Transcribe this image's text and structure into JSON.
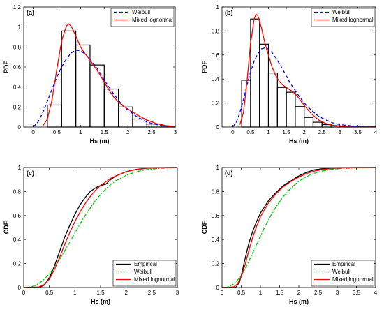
{
  "chart_data": [
    {
      "panel": "(a)",
      "type": "bar",
      "xlabel": "Hs (m)",
      "ylabel": "PDF",
      "xlim": [
        -0.2,
        3
      ],
      "ylim": [
        0,
        1.2
      ],
      "xticks": [
        0,
        0.5,
        1,
        1.5,
        2,
        2.5,
        3
      ],
      "xtick_labels": [
        "0",
        "0.5",
        "1",
        "1.5",
        "2",
        "2.5",
        "3"
      ],
      "yticks": [
        0,
        0.2,
        0.4,
        0.6,
        0.8,
        1,
        1.2
      ],
      "ytick_labels": [
        "0",
        "0.2",
        "0.4",
        "0.6",
        "0.8",
        "1",
        "1.2"
      ],
      "legend_position": "top-right",
      "histogram": {
        "bin_edges": [
          0.3,
          0.6,
          0.9,
          1.2,
          1.5,
          1.8,
          2.1,
          2.4,
          2.7,
          3.0
        ],
        "values": [
          0.22,
          0.96,
          0.82,
          0.62,
          0.38,
          0.2,
          0.08,
          0.03,
          0.01
        ]
      },
      "series": [
        {
          "name": "Weibull",
          "style": "dashed",
          "color": "#0000ff",
          "x": [
            0,
            0.1,
            0.2,
            0.3,
            0.4,
            0.5,
            0.6,
            0.7,
            0.8,
            0.9,
            1.0,
            1.1,
            1.2,
            1.3,
            1.4,
            1.5,
            1.6,
            1.7,
            1.8,
            1.9,
            2.0,
            2.2,
            2.4,
            2.6,
            2.8,
            3.0
          ],
          "y": [
            0,
            0.05,
            0.14,
            0.26,
            0.38,
            0.5,
            0.6,
            0.68,
            0.74,
            0.77,
            0.76,
            0.73,
            0.68,
            0.62,
            0.55,
            0.47,
            0.4,
            0.33,
            0.27,
            0.21,
            0.17,
            0.1,
            0.05,
            0.025,
            0.01,
            0.005
          ]
        },
        {
          "name": "Mixed lognormal",
          "style": "solid",
          "color": "#ff0000",
          "x": [
            0.2,
            0.3,
            0.4,
            0.5,
            0.6,
            0.7,
            0.75,
            0.8,
            0.9,
            1.0,
            1.1,
            1.2,
            1.3,
            1.4,
            1.5,
            1.6,
            1.7,
            1.8,
            1.9,
            2.0,
            2.2,
            2.4,
            2.6,
            2.8,
            3.0
          ],
          "y": [
            0.01,
            0.08,
            0.28,
            0.58,
            0.86,
            1.01,
            1.03,
            1.01,
            0.91,
            0.8,
            0.73,
            0.67,
            0.6,
            0.53,
            0.45,
            0.37,
            0.3,
            0.25,
            0.21,
            0.18,
            0.12,
            0.07,
            0.035,
            0.015,
            0.005
          ]
        }
      ]
    },
    {
      "panel": "(b)",
      "type": "bar",
      "xlabel": "Hs (m)",
      "ylabel": "PDF",
      "xlim": [
        -0.3,
        4
      ],
      "ylim": [
        0,
        1
      ],
      "xticks": [
        0,
        0.5,
        1,
        1.5,
        2,
        2.5,
        3,
        3.5,
        4
      ],
      "xtick_labels": [
        "0",
        "0.5",
        "1",
        "1.5",
        "2",
        "2.5",
        "3",
        "3.5",
        "4"
      ],
      "yticks": [
        0,
        0.2,
        0.4,
        0.6,
        0.8,
        1
      ],
      "ytick_labels": [
        "0",
        "0.2",
        "0.4",
        "0.6",
        "0.8",
        "1"
      ],
      "legend_position": "top-right",
      "histogram": {
        "bin_edges": [
          0.25,
          0.5,
          0.75,
          1.0,
          1.25,
          1.5,
          1.75,
          2.0,
          2.25,
          2.5,
          2.75,
          3.0,
          3.25,
          3.5,
          3.75,
          4.0
        ],
        "values": [
          0.39,
          0.9,
          0.69,
          0.45,
          0.33,
          0.29,
          0.17,
          0.08,
          0.04,
          0.02,
          0.01,
          0.005,
          0.003,
          0.002,
          0.001
        ]
      },
      "series": [
        {
          "name": "Weibull",
          "style": "dashed",
          "color": "#0000ff",
          "x": [
            0,
            0.1,
            0.2,
            0.3,
            0.4,
            0.5,
            0.6,
            0.7,
            0.8,
            0.9,
            1.0,
            1.1,
            1.2,
            1.4,
            1.6,
            1.8,
            2.0,
            2.2,
            2.4,
            2.6,
            2.8,
            3.0,
            3.5,
            4.0
          ],
          "y": [
            0,
            0.04,
            0.12,
            0.23,
            0.35,
            0.46,
            0.55,
            0.61,
            0.65,
            0.66,
            0.65,
            0.62,
            0.58,
            0.48,
            0.37,
            0.28,
            0.2,
            0.14,
            0.09,
            0.06,
            0.035,
            0.02,
            0.005,
            0.001
          ]
        },
        {
          "name": "Mixed lognormal",
          "style": "solid",
          "color": "#ff0000",
          "x": [
            0.2,
            0.3,
            0.4,
            0.5,
            0.6,
            0.65,
            0.7,
            0.8,
            0.9,
            1.0,
            1.1,
            1.2,
            1.3,
            1.4,
            1.5,
            1.6,
            1.7,
            1.8,
            1.9,
            2.0,
            2.2,
            2.4,
            2.6,
            2.8,
            3.0,
            3.5,
            4.0
          ],
          "y": [
            0.02,
            0.12,
            0.38,
            0.7,
            0.9,
            0.94,
            0.93,
            0.83,
            0.7,
            0.6,
            0.5,
            0.43,
            0.38,
            0.35,
            0.33,
            0.31,
            0.29,
            0.26,
            0.22,
            0.18,
            0.11,
            0.06,
            0.03,
            0.015,
            0.008,
            0.002,
            0.0
          ]
        }
      ]
    },
    {
      "panel": "(c)",
      "type": "line",
      "xlabel": "Hs (m)",
      "ylabel": "CDF",
      "xlim": [
        0,
        3
      ],
      "ylim": [
        0,
        1
      ],
      "xticks": [
        0,
        0.5,
        1,
        1.5,
        2,
        2.5,
        3
      ],
      "xtick_labels": [
        "0",
        "0.5",
        "1",
        "1.5",
        "2",
        "2.5",
        "3"
      ],
      "yticks": [
        0,
        0.2,
        0.4,
        0.6,
        0.8,
        1
      ],
      "ytick_labels": [
        "0",
        "0.2",
        "0.4",
        "0.6",
        "0.8",
        "1"
      ],
      "legend_position": "bottom-right",
      "series": [
        {
          "name": "Empirical",
          "style": "solid",
          "color": "#000000",
          "x": [
            0,
            0.3,
            0.4,
            0.5,
            0.6,
            0.7,
            0.8,
            0.9,
            1.0,
            1.1,
            1.2,
            1.3,
            1.4,
            1.5,
            1.6,
            1.7,
            1.8,
            2.0,
            2.2,
            2.4,
            2.6,
            2.8,
            3.0
          ],
          "y": [
            0,
            0.0,
            0.02,
            0.08,
            0.18,
            0.3,
            0.42,
            0.52,
            0.61,
            0.69,
            0.75,
            0.8,
            0.83,
            0.85,
            0.86,
            0.9,
            0.93,
            0.965,
            0.985,
            0.995,
            0.998,
            1.0,
            1.0
          ]
        },
        {
          "name": "Weibull",
          "style": "dashdot",
          "color": "#00cc00",
          "x": [
            0,
            0.1,
            0.2,
            0.3,
            0.4,
            0.5,
            0.6,
            0.7,
            0.8,
            0.9,
            1.0,
            1.1,
            1.2,
            1.3,
            1.4,
            1.5,
            1.6,
            1.7,
            1.8,
            2.0,
            2.2,
            2.4,
            2.6,
            2.8,
            3.0
          ],
          "y": [
            0,
            0.003,
            0.012,
            0.035,
            0.07,
            0.115,
            0.17,
            0.235,
            0.305,
            0.38,
            0.455,
            0.53,
            0.6,
            0.665,
            0.725,
            0.775,
            0.82,
            0.86,
            0.89,
            0.935,
            0.965,
            0.982,
            0.991,
            0.996,
            0.998
          ]
        },
        {
          "name": "Mixed lognormal",
          "style": "solid",
          "color": "#ff0000",
          "x": [
            0,
            0.3,
            0.4,
            0.5,
            0.6,
            0.7,
            0.8,
            0.9,
            1.0,
            1.1,
            1.2,
            1.3,
            1.4,
            1.5,
            1.6,
            1.7,
            1.8,
            2.0,
            2.2,
            2.4,
            2.6,
            2.8,
            3.0
          ],
          "y": [
            0,
            0.005,
            0.025,
            0.07,
            0.15,
            0.25,
            0.36,
            0.46,
            0.55,
            0.63,
            0.7,
            0.76,
            0.81,
            0.85,
            0.88,
            0.91,
            0.93,
            0.965,
            0.983,
            0.993,
            0.997,
            0.999,
            1.0
          ]
        }
      ]
    },
    {
      "panel": "(d)",
      "type": "line",
      "xlabel": "Hs (m)",
      "ylabel": "CDF",
      "xlim": [
        0,
        4
      ],
      "ylim": [
        0,
        1
      ],
      "xticks": [
        0,
        0.5,
        1,
        1.5,
        2,
        2.5,
        3,
        3.5,
        4
      ],
      "xtick_labels": [
        "0",
        "0.5",
        "1",
        "1.5",
        "2",
        "2.5",
        "3",
        "3.5",
        "4"
      ],
      "yticks": [
        0,
        0.2,
        0.4,
        0.6,
        0.8,
        1
      ],
      "ytick_labels": [
        "0",
        "0.2",
        "0.4",
        "0.6",
        "0.8",
        "1"
      ],
      "legend_position": "bottom-right",
      "series": [
        {
          "name": "Empirical",
          "style": "solid",
          "color": "#000000",
          "x": [
            0,
            0.35,
            0.45,
            0.5,
            0.6,
            0.7,
            0.8,
            0.9,
            1.0,
            1.2,
            1.4,
            1.6,
            1.8,
            2.0,
            2.2,
            2.4,
            2.6,
            2.8,
            3.0,
            3.5,
            4.0
          ],
          "y": [
            0,
            0.0,
            0.04,
            0.1,
            0.24,
            0.37,
            0.47,
            0.55,
            0.62,
            0.72,
            0.79,
            0.85,
            0.89,
            0.93,
            0.96,
            0.98,
            0.99,
            0.995,
            0.998,
            1.0,
            1.0
          ]
        },
        {
          "name": "Weibull",
          "style": "dashdot",
          "color": "#00cc00",
          "x": [
            0,
            0.1,
            0.2,
            0.3,
            0.4,
            0.5,
            0.6,
            0.7,
            0.8,
            0.9,
            1.0,
            1.2,
            1.4,
            1.6,
            1.8,
            2.0,
            2.2,
            2.4,
            2.6,
            2.8,
            3.0,
            3.5,
            4.0
          ],
          "y": [
            0,
            0.002,
            0.01,
            0.03,
            0.06,
            0.1,
            0.155,
            0.22,
            0.29,
            0.36,
            0.43,
            0.56,
            0.67,
            0.76,
            0.83,
            0.885,
            0.925,
            0.952,
            0.97,
            0.982,
            0.99,
            0.997,
            0.999
          ]
        },
        {
          "name": "Mixed lognormal",
          "style": "solid",
          "color": "#ff0000",
          "x": [
            0,
            0.3,
            0.4,
            0.5,
            0.6,
            0.7,
            0.8,
            0.9,
            1.0,
            1.2,
            1.4,
            1.6,
            1.8,
            2.0,
            2.2,
            2.4,
            2.6,
            2.8,
            3.0,
            3.5,
            4.0
          ],
          "y": [
            0,
            0.005,
            0.03,
            0.09,
            0.19,
            0.31,
            0.42,
            0.51,
            0.59,
            0.7,
            0.78,
            0.84,
            0.885,
            0.92,
            0.95,
            0.97,
            0.982,
            0.99,
            0.995,
            0.999,
            1.0
          ]
        }
      ]
    }
  ]
}
